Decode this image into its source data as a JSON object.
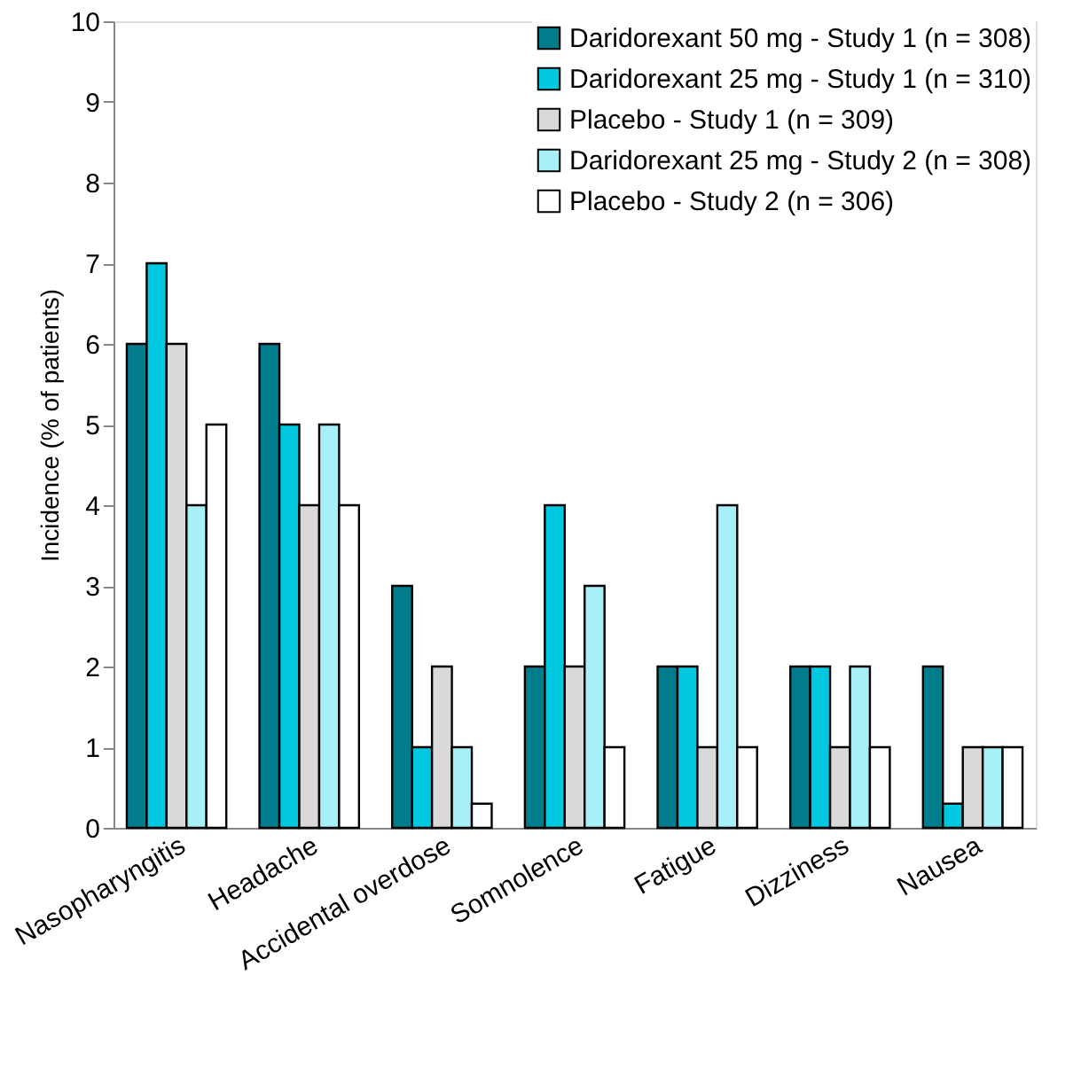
{
  "chart_data": {
    "type": "bar",
    "ylabel": "Incidence (% of patients)",
    "categories": [
      "Nasopharyngitis",
      "Headache",
      "Accidental overdose",
      "Somnolence",
      "Fatigue",
      "Dizziness",
      "Nausea"
    ],
    "series": [
      {
        "name": "Daridorexant 50 mg - Study 1 (n = 308)",
        "color": "#007c8c",
        "values": [
          6,
          6,
          3,
          2,
          2,
          2,
          2
        ]
      },
      {
        "name": "Daridorexant 25 mg - Study 1 (n = 310)",
        "color": "#00c8e0",
        "values": [
          7,
          5,
          1,
          4,
          2,
          2,
          0.3
        ]
      },
      {
        "name": "Placebo - Study 1 (n = 309)",
        "color": "#d9d9d9",
        "values": [
          6,
          4,
          2,
          2,
          1,
          1,
          1
        ]
      },
      {
        "name": "Daridorexant 25 mg - Study 2 (n = 308)",
        "color": "#a8f0f8",
        "values": [
          4,
          5,
          1,
          3,
          4,
          2,
          1
        ]
      },
      {
        "name": "Placebo - Study 2 (n = 306)",
        "color": "#ffffff",
        "values": [
          5,
          4,
          0.3,
          1,
          1,
          1,
          1
        ]
      }
    ],
    "ylim": [
      0,
      10
    ],
    "yticks": [
      0,
      1,
      2,
      3,
      4,
      5,
      6,
      7,
      8,
      9,
      10
    ],
    "grid": false,
    "legend": "top right"
  }
}
